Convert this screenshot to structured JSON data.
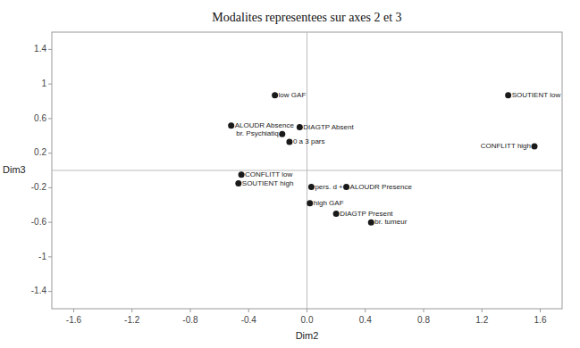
{
  "chart_data": {
    "type": "scatter",
    "title": "Modalites representees sur axes 2 et 3",
    "xlabel": "Dim2",
    "ylabel": "Dim3",
    "xlim": [
      -1.75,
      1.75
    ],
    "ylim": [
      -1.6,
      1.6
    ],
    "xticks": [
      -1.6,
      -1.2,
      -0.8,
      -0.4,
      {
        "value": 0.0,
        "label": "0.0"
      },
      0.4,
      0.8,
      1.2,
      1.6
    ],
    "yticks": [
      -1.4,
      -1.0,
      -0.6,
      -0.2,
      0.2,
      0.6,
      1.0,
      1.4
    ],
    "x": [
      -0.22,
      -0.52,
      -0.05,
      -0.17,
      -0.12,
      -0.45,
      -0.47,
      0.03,
      0.27,
      0.02,
      0.2,
      0.44,
      1.38,
      1.56
    ],
    "values": [
      0.87,
      0.52,
      0.5,
      0.42,
      0.33,
      -0.05,
      -0.15,
      -0.19,
      -0.19,
      -0.38,
      -0.5,
      -0.6,
      0.87,
      0.28
    ],
    "labels": [
      "low GAF",
      "ALOUDR Absence",
      "DIAGTP Absent",
      "br. Psychiatiq",
      "0 a 3 pars",
      "CONFLITT low",
      "SOUTIENT high",
      "pers. d +",
      "ALOUDR Presence",
      "high GAF",
      "DIAGTP Present",
      "br. tumeur",
      "SOUTIENT low",
      "CONFLITT high"
    ],
    "color": "#1a1a1a",
    "grid": false
  }
}
